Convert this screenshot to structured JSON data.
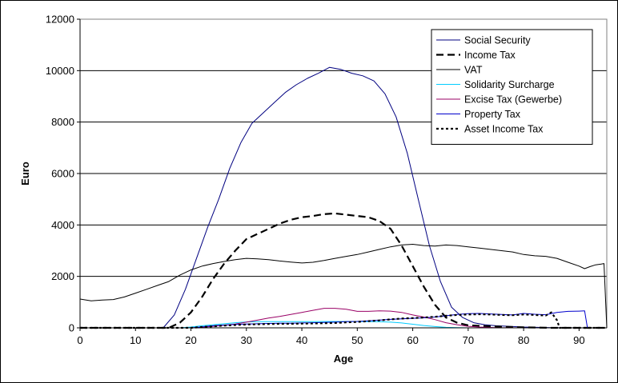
{
  "chart_data": {
    "type": "line",
    "xlabel": "Age",
    "ylabel": "Euro",
    "xlim": [
      0,
      95
    ],
    "ylim": [
      0,
      12000
    ],
    "x_ticks": [
      "0",
      "10",
      "20",
      "30",
      "40",
      "50",
      "60",
      "70",
      "80",
      "90"
    ],
    "y_ticks": [
      "0",
      "2000",
      "4000",
      "6000",
      "8000",
      "10000",
      "12000"
    ],
    "grid": "horizontal",
    "legend_position": "top-right",
    "series": [
      {
        "name": "Social Security",
        "color": "#000080",
        "dash": "solid",
        "points": [
          [
            0,
            0
          ],
          [
            15,
            0
          ],
          [
            17,
            500
          ],
          [
            19,
            1500
          ],
          [
            21,
            2700
          ],
          [
            23,
            3900
          ],
          [
            25,
            5000
          ],
          [
            27,
            6200
          ],
          [
            29,
            7200
          ],
          [
            31,
            7950
          ],
          [
            33,
            8350
          ],
          [
            35,
            8750
          ],
          [
            37,
            9150
          ],
          [
            39,
            9450
          ],
          [
            41,
            9700
          ],
          [
            43,
            9900
          ],
          [
            45,
            10130
          ],
          [
            47,
            10050
          ],
          [
            49,
            9900
          ],
          [
            51,
            9800
          ],
          [
            53,
            9600
          ],
          [
            55,
            9100
          ],
          [
            57,
            8200
          ],
          [
            59,
            6800
          ],
          [
            61,
            5000
          ],
          [
            63,
            3200
          ],
          [
            65,
            1800
          ],
          [
            67,
            800
          ],
          [
            69,
            400
          ],
          [
            71,
            200
          ],
          [
            73,
            120
          ],
          [
            75,
            80
          ],
          [
            80,
            30
          ],
          [
            85,
            10
          ],
          [
            90,
            0
          ],
          [
            95,
            0
          ]
        ]
      },
      {
        "name": "Income Tax",
        "color": "#000000",
        "dash": "9,5",
        "width": 2.2,
        "points": [
          [
            0,
            0
          ],
          [
            16,
            0
          ],
          [
            18,
            200
          ],
          [
            20,
            600
          ],
          [
            22,
            1200
          ],
          [
            24,
            1900
          ],
          [
            26,
            2500
          ],
          [
            28,
            3000
          ],
          [
            30,
            3450
          ],
          [
            32,
            3650
          ],
          [
            34,
            3850
          ],
          [
            36,
            4050
          ],
          [
            38,
            4200
          ],
          [
            40,
            4300
          ],
          [
            42,
            4350
          ],
          [
            44,
            4420
          ],
          [
            46,
            4450
          ],
          [
            48,
            4400
          ],
          [
            50,
            4350
          ],
          [
            52,
            4300
          ],
          [
            54,
            4150
          ],
          [
            56,
            3850
          ],
          [
            58,
            3200
          ],
          [
            60,
            2400
          ],
          [
            62,
            1600
          ],
          [
            64,
            900
          ],
          [
            66,
            400
          ],
          [
            68,
            200
          ],
          [
            70,
            100
          ],
          [
            75,
            50
          ],
          [
            80,
            20
          ],
          [
            85,
            0
          ],
          [
            95,
            0
          ]
        ]
      },
      {
        "name": "VAT",
        "color": "#000000",
        "dash": "solid",
        "width": 1,
        "points": [
          [
            0,
            1120
          ],
          [
            2,
            1050
          ],
          [
            4,
            1080
          ],
          [
            6,
            1100
          ],
          [
            8,
            1200
          ],
          [
            10,
            1350
          ],
          [
            12,
            1500
          ],
          [
            14,
            1650
          ],
          [
            16,
            1800
          ],
          [
            18,
            2050
          ],
          [
            20,
            2250
          ],
          [
            22,
            2400
          ],
          [
            24,
            2500
          ],
          [
            26,
            2580
          ],
          [
            28,
            2650
          ],
          [
            30,
            2700
          ],
          [
            32,
            2680
          ],
          [
            34,
            2650
          ],
          [
            36,
            2600
          ],
          [
            38,
            2560
          ],
          [
            40,
            2520
          ],
          [
            42,
            2550
          ],
          [
            44,
            2620
          ],
          [
            46,
            2700
          ],
          [
            48,
            2780
          ],
          [
            50,
            2850
          ],
          [
            52,
            2950
          ],
          [
            54,
            3050
          ],
          [
            56,
            3150
          ],
          [
            58,
            3220
          ],
          [
            60,
            3250
          ],
          [
            62,
            3200
          ],
          [
            64,
            3180
          ],
          [
            66,
            3220
          ],
          [
            68,
            3200
          ],
          [
            70,
            3150
          ],
          [
            72,
            3100
          ],
          [
            74,
            3050
          ],
          [
            76,
            3000
          ],
          [
            78,
            2950
          ],
          [
            80,
            2850
          ],
          [
            82,
            2800
          ],
          [
            84,
            2780
          ],
          [
            86,
            2700
          ],
          [
            88,
            2550
          ],
          [
            90,
            2400
          ],
          [
            91,
            2300
          ],
          [
            92,
            2380
          ],
          [
            93,
            2450
          ],
          [
            94,
            2480
          ],
          [
            94.5,
            2500
          ],
          [
            95,
            0
          ]
        ]
      },
      {
        "name": "Solidarity Surcharge",
        "color": "#00CCFF",
        "dash": "solid",
        "width": 1,
        "points": [
          [
            0,
            0
          ],
          [
            18,
            0
          ],
          [
            20,
            30
          ],
          [
            22,
            80
          ],
          [
            24,
            120
          ],
          [
            26,
            160
          ],
          [
            28,
            200
          ],
          [
            30,
            230
          ],
          [
            32,
            240
          ],
          [
            34,
            240
          ],
          [
            36,
            240
          ],
          [
            38,
            240
          ],
          [
            40,
            240
          ],
          [
            42,
            240
          ],
          [
            44,
            245
          ],
          [
            46,
            245
          ],
          [
            48,
            245
          ],
          [
            50,
            245
          ],
          [
            52,
            240
          ],
          [
            54,
            235
          ],
          [
            56,
            220
          ],
          [
            58,
            190
          ],
          [
            60,
            140
          ],
          [
            62,
            90
          ],
          [
            64,
            50
          ],
          [
            66,
            20
          ],
          [
            68,
            10
          ],
          [
            70,
            0
          ],
          [
            95,
            0
          ]
        ]
      },
      {
        "name": "Excise Tax (Gewerbe)",
        "color": "#990066",
        "dash": "solid",
        "width": 1,
        "points": [
          [
            0,
            0
          ],
          [
            20,
            0
          ],
          [
            22,
            20
          ],
          [
            24,
            60
          ],
          [
            26,
            100
          ],
          [
            28,
            150
          ],
          [
            30,
            220
          ],
          [
            32,
            300
          ],
          [
            34,
            380
          ],
          [
            36,
            440
          ],
          [
            38,
            520
          ],
          [
            40,
            600
          ],
          [
            42,
            680
          ],
          [
            44,
            760
          ],
          [
            46,
            760
          ],
          [
            48,
            720
          ],
          [
            50,
            640
          ],
          [
            52,
            640
          ],
          [
            54,
            660
          ],
          [
            56,
            650
          ],
          [
            58,
            600
          ],
          [
            60,
            500
          ],
          [
            62,
            420
          ],
          [
            64,
            320
          ],
          [
            66,
            200
          ],
          [
            68,
            120
          ],
          [
            70,
            60
          ],
          [
            72,
            30
          ],
          [
            75,
            10
          ],
          [
            80,
            0
          ],
          [
            95,
            0
          ]
        ]
      },
      {
        "name": "Property Tax",
        "color": "#0000CC",
        "dash": "solid",
        "width": 1,
        "points": [
          [
            0,
            0
          ],
          [
            20,
            0
          ],
          [
            22,
            40
          ],
          [
            24,
            80
          ],
          [
            26,
            110
          ],
          [
            28,
            130
          ],
          [
            30,
            150
          ],
          [
            32,
            160
          ],
          [
            34,
            170
          ],
          [
            36,
            180
          ],
          [
            38,
            180
          ],
          [
            40,
            190
          ],
          [
            42,
            200
          ],
          [
            44,
            210
          ],
          [
            46,
            220
          ],
          [
            48,
            240
          ],
          [
            50,
            250
          ],
          [
            52,
            270
          ],
          [
            54,
            300
          ],
          [
            56,
            330
          ],
          [
            58,
            350
          ],
          [
            60,
            370
          ],
          [
            62,
            390
          ],
          [
            64,
            420
          ],
          [
            66,
            470
          ],
          [
            68,
            520
          ],
          [
            70,
            550
          ],
          [
            72,
            560
          ],
          [
            74,
            540
          ],
          [
            76,
            520
          ],
          [
            78,
            500
          ],
          [
            80,
            560
          ],
          [
            82,
            530
          ],
          [
            84,
            510
          ],
          [
            86,
            600
          ],
          [
            88,
            640
          ],
          [
            90,
            650
          ],
          [
            91,
            660
          ],
          [
            91.5,
            0
          ],
          [
            95,
            0
          ]
        ]
      },
      {
        "name": "Asset Income Tax",
        "color": "#000000",
        "dash": "3,3",
        "width": 2.2,
        "points": [
          [
            0,
            0
          ],
          [
            20,
            0
          ],
          [
            22,
            30
          ],
          [
            24,
            60
          ],
          [
            26,
            90
          ],
          [
            28,
            110
          ],
          [
            30,
            130
          ],
          [
            32,
            140
          ],
          [
            34,
            150
          ],
          [
            36,
            155
          ],
          [
            38,
            160
          ],
          [
            40,
            165
          ],
          [
            42,
            170
          ],
          [
            44,
            180
          ],
          [
            46,
            190
          ],
          [
            48,
            210
          ],
          [
            50,
            230
          ],
          [
            52,
            260
          ],
          [
            54,
            290
          ],
          [
            56,
            330
          ],
          [
            58,
            360
          ],
          [
            60,
            380
          ],
          [
            62,
            400
          ],
          [
            64,
            430
          ],
          [
            66,
            470
          ],
          [
            68,
            500
          ],
          [
            70,
            520
          ],
          [
            72,
            530
          ],
          [
            74,
            520
          ],
          [
            76,
            500
          ],
          [
            78,
            490
          ],
          [
            80,
            520
          ],
          [
            82,
            500
          ],
          [
            84,
            480
          ],
          [
            85,
            600
          ],
          [
            86,
            300
          ],
          [
            86.5,
            0
          ],
          [
            95,
            0
          ]
        ]
      }
    ]
  }
}
